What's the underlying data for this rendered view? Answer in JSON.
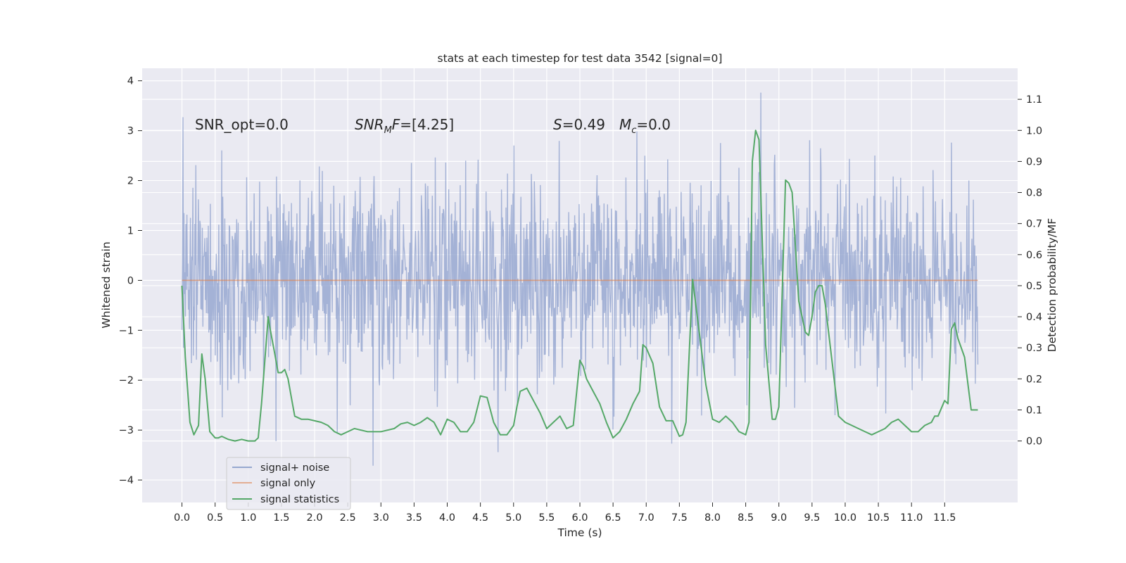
{
  "chart_data": {
    "type": "line",
    "title": "stats at each timestep for test data 3542 [signal=0]",
    "xlabel": "Time (s)",
    "ylabel_left": "Whitened strain",
    "ylabel_right": "Detection probability/MF",
    "xlim": [
      -0.6,
      12.6
    ],
    "ylim_left": [
      -4.45,
      4.25
    ],
    "ylim_right": [
      -0.198,
      1.2
    ],
    "grid": true,
    "x_ticks": [
      0.0,
      0.5,
      1.0,
      1.5,
      2.0,
      2.5,
      3.0,
      3.5,
      4.0,
      4.5,
      5.0,
      5.5,
      6.0,
      6.5,
      7.0,
      7.5,
      8.0,
      8.5,
      9.0,
      9.5,
      10.0,
      10.5,
      11.0,
      11.5
    ],
    "x_tick_labels": [
      "0.0",
      "0.5",
      "1.0",
      "1.5",
      "2.0",
      "2.5",
      "3.0",
      "3.5",
      "4.0",
      "4.5",
      "5.0",
      "5.5",
      "6.0",
      "6.5",
      "7.0",
      "7.5",
      "8.0",
      "8.5",
      "9.0",
      "9.5",
      "10.0",
      "10.5",
      "11.0",
      "11.5"
    ],
    "y_ticks_left": [
      -4,
      -3,
      -2,
      -1,
      0,
      1,
      2,
      3,
      4
    ],
    "y_tick_labels_left": [
      "−4",
      "−3",
      "−2",
      "−1",
      "0",
      "1",
      "2",
      "3",
      "4"
    ],
    "y_ticks_right": [
      0.0,
      0.1,
      0.2,
      0.3,
      0.4,
      0.5,
      0.6,
      0.7,
      0.8,
      0.9,
      1.0,
      1.1
    ],
    "y_tick_labels_right": [
      "0.0",
      "0.1",
      "0.2",
      "0.3",
      "0.4",
      "0.5",
      "0.6",
      "0.7",
      "0.8",
      "0.9",
      "1.0",
      "1.1"
    ],
    "annotations": [
      {
        "text": "SNR_opt=0.0",
        "x": 0.2,
        "y": 3.0
      },
      {
        "text": "SNR",
        "sub": "M",
        "text2": "F=[4.25]",
        "x": 2.6,
        "y": 3.0
      },
      {
        "text": "S",
        "text2": "=0.49",
        "x": 5.6,
        "y": 3.0
      },
      {
        "text": "M",
        "sub": "c",
        "text2": "=0.0",
        "x": 6.6,
        "y": 3.0
      }
    ],
    "legend": {
      "placement": "lower-left",
      "entries": [
        {
          "label": "signal+ noise",
          "color": "#96a8cf"
        },
        {
          "label": "signal only",
          "color": "#dd8452"
        },
        {
          "label": "signal statistics",
          "color": "#55a868"
        }
      ]
    },
    "series": [
      {
        "name": "signal+ noise",
        "axis": "left",
        "color": "#8c9fcc",
        "style": "dense noise, approx. zero-mean, std ~1.0, range about -4.1 to 3.9",
        "x_range": [
          0.0,
          12.0
        ],
        "n_points": 1600,
        "y_min": -4.1,
        "y_max": 3.88
      },
      {
        "name": "signal only",
        "axis": "left",
        "color": "#dd8452",
        "x": [
          0.0,
          12.0
        ],
        "y": [
          0.0,
          0.0
        ]
      },
      {
        "name": "signal statistics",
        "axis": "right",
        "color": "#55a868",
        "x": [
          0.0,
          0.05,
          0.12,
          0.18,
          0.25,
          0.3,
          0.35,
          0.42,
          0.5,
          0.55,
          0.6,
          0.7,
          0.8,
          0.9,
          1.0,
          1.1,
          1.15,
          1.2,
          1.3,
          1.33,
          1.4,
          1.45,
          1.5,
          1.55,
          1.6,
          1.65,
          1.7,
          1.8,
          1.9,
          2.0,
          2.1,
          2.2,
          2.3,
          2.4,
          2.5,
          2.6,
          2.7,
          2.8,
          2.9,
          3.0,
          3.1,
          3.2,
          3.3,
          3.4,
          3.5,
          3.6,
          3.7,
          3.8,
          3.9,
          4.0,
          4.1,
          4.2,
          4.3,
          4.4,
          4.5,
          4.6,
          4.7,
          4.8,
          4.9,
          5.0,
          5.05,
          5.1,
          5.15,
          5.2,
          5.3,
          5.4,
          5.5,
          5.6,
          5.7,
          5.8,
          5.9,
          6.0,
          6.05,
          6.1,
          6.2,
          6.3,
          6.4,
          6.5,
          6.6,
          6.7,
          6.8,
          6.9,
          6.95,
          7.0,
          7.1,
          7.2,
          7.3,
          7.4,
          7.5,
          7.55,
          7.6,
          7.7,
          7.8,
          7.9,
          8.0,
          8.1,
          8.2,
          8.3,
          8.4,
          8.5,
          8.55,
          8.6,
          8.65,
          8.7,
          8.8,
          8.9,
          8.95,
          9.0,
          9.1,
          9.15,
          9.2,
          9.3,
          9.4,
          9.45,
          9.5,
          9.55,
          9.6,
          9.65,
          9.7,
          9.8,
          9.9,
          10.0,
          10.1,
          10.2,
          10.3,
          10.4,
          10.5,
          10.6,
          10.7,
          10.8,
          10.9,
          11.0,
          11.1,
          11.2,
          11.3,
          11.35,
          11.4,
          11.5,
          11.55,
          11.6,
          11.65,
          11.7,
          11.8,
          11.9,
          12.0
        ],
        "y": [
          0.5,
          0.27,
          0.06,
          0.02,
          0.05,
          0.28,
          0.2,
          0.03,
          0.01,
          0.01,
          0.015,
          0.005,
          0.0,
          0.005,
          0.0,
          0.0,
          0.01,
          0.12,
          0.4,
          0.36,
          0.28,
          0.22,
          0.22,
          0.23,
          0.2,
          0.14,
          0.08,
          0.07,
          0.07,
          0.065,
          0.06,
          0.05,
          0.03,
          0.02,
          0.03,
          0.04,
          0.035,
          0.03,
          0.03,
          0.03,
          0.035,
          0.04,
          0.055,
          0.06,
          0.05,
          0.06,
          0.075,
          0.06,
          0.02,
          0.07,
          0.06,
          0.03,
          0.03,
          0.06,
          0.145,
          0.14,
          0.06,
          0.02,
          0.02,
          0.05,
          0.11,
          0.16,
          0.165,
          0.17,
          0.13,
          0.09,
          0.04,
          0.06,
          0.08,
          0.04,
          0.05,
          0.26,
          0.24,
          0.2,
          0.16,
          0.12,
          0.06,
          0.01,
          0.03,
          0.07,
          0.12,
          0.16,
          0.31,
          0.3,
          0.25,
          0.11,
          0.065,
          0.065,
          0.015,
          0.02,
          0.06,
          0.52,
          0.35,
          0.18,
          0.07,
          0.06,
          0.08,
          0.06,
          0.03,
          0.02,
          0.06,
          0.9,
          1.0,
          0.97,
          0.31,
          0.07,
          0.07,
          0.11,
          0.84,
          0.83,
          0.8,
          0.45,
          0.35,
          0.34,
          0.4,
          0.48,
          0.5,
          0.5,
          0.44,
          0.26,
          0.08,
          0.06,
          0.05,
          0.04,
          0.03,
          0.02,
          0.03,
          0.04,
          0.06,
          0.07,
          0.05,
          0.03,
          0.03,
          0.05,
          0.06,
          0.08,
          0.08,
          0.13,
          0.12,
          0.36,
          0.38,
          0.33,
          0.27,
          0.1,
          0.1
        ]
      }
    ]
  }
}
